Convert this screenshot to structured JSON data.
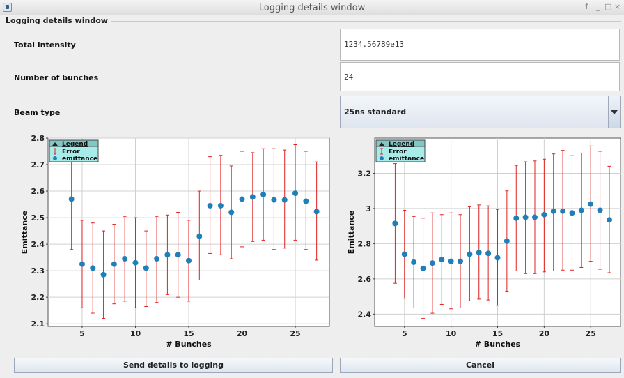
{
  "window": {
    "title": "Logging details window",
    "controls": [
      "↑",
      "_",
      "□",
      "×"
    ]
  },
  "panel": {
    "title": "Logging details window"
  },
  "form": {
    "total_intensity": {
      "label": "Total intensity",
      "value": "1234.56789e13"
    },
    "number_of_bunches": {
      "label": "Number of bunches",
      "value": "24"
    },
    "beam_type": {
      "label": "Beam type",
      "value": "25ns standard"
    }
  },
  "buttons": {
    "send": "Send details to logging",
    "cancel": "Cancel"
  },
  "colors": {
    "marker": "#1f7fb8",
    "error_bar": "#e02020",
    "legend_bg": "#a8ecea"
  },
  "chart_data": [
    {
      "type": "scatter",
      "title": "",
      "xlabel": "# Bunches",
      "ylabel": "Emittance",
      "xlim": [
        1.8,
        28.2
      ],
      "ylim": [
        2.09,
        2.8
      ],
      "xticks": [
        5,
        10,
        15,
        20,
        25
      ],
      "yticks": [
        2.1,
        2.2,
        2.3,
        2.4,
        2.5,
        2.6,
        2.7,
        2.8
      ],
      "ytick_labels": [
        "2.1",
        "2.2",
        "2.3",
        "2.4",
        "2.5",
        "2.6",
        "2.7",
        "2.8"
      ],
      "grid": true,
      "legend": {
        "placement": "top-left",
        "title": "Legend",
        "entries": [
          "Error",
          "emittance"
        ]
      },
      "x": [
        4,
        5,
        6,
        7,
        8,
        9,
        10,
        11,
        12,
        13,
        14,
        15,
        16,
        17,
        18,
        19,
        20,
        21,
        22,
        23,
        24,
        25,
        26,
        27
      ],
      "y": [
        2.57,
        2.325,
        2.31,
        2.285,
        2.325,
        2.345,
        2.33,
        2.31,
        2.345,
        2.36,
        2.36,
        2.338,
        2.43,
        2.545,
        2.545,
        2.52,
        2.57,
        2.578,
        2.587,
        2.567,
        2.567,
        2.592,
        2.562,
        2.523
      ],
      "err_low": [
        2.38,
        2.16,
        2.14,
        2.12,
        2.175,
        2.185,
        2.16,
        2.165,
        2.18,
        2.21,
        2.2,
        2.185,
        2.265,
        2.365,
        2.36,
        2.345,
        2.39,
        2.41,
        2.415,
        2.38,
        2.385,
        2.415,
        2.38,
        2.34
      ],
      "err_high": [
        2.76,
        2.49,
        2.48,
        2.45,
        2.475,
        2.505,
        2.5,
        2.45,
        2.505,
        2.51,
        2.52,
        2.49,
        2.6,
        2.73,
        2.735,
        2.695,
        2.75,
        2.745,
        2.76,
        2.76,
        2.755,
        2.775,
        2.75,
        2.71
      ]
    },
    {
      "type": "scatter",
      "title": "",
      "xlabel": "# Bunches",
      "ylabel": "Emittance",
      "xlim": [
        1.8,
        28.2
      ],
      "ylim": [
        2.33,
        3.4
      ],
      "xticks": [
        5,
        10,
        15,
        20,
        25
      ],
      "yticks": [
        2.4,
        2.6,
        2.8,
        3.0,
        3.2
      ],
      "ytick_labels": [
        "2.4",
        "2.6",
        "2.8",
        "3",
        "3.2"
      ],
      "grid": true,
      "legend": {
        "placement": "top-left",
        "title": "Legend",
        "entries": [
          "Error",
          "emittance"
        ]
      },
      "x": [
        4,
        5,
        6,
        7,
        8,
        9,
        10,
        11,
        12,
        13,
        14,
        15,
        16,
        17,
        18,
        19,
        20,
        21,
        22,
        23,
        24,
        25,
        26,
        27
      ],
      "y": [
        2.915,
        2.74,
        2.695,
        2.66,
        2.69,
        2.71,
        2.7,
        2.7,
        2.74,
        2.75,
        2.745,
        2.72,
        2.815,
        2.945,
        2.95,
        2.95,
        2.965,
        2.985,
        2.985,
        2.975,
        2.99,
        3.025,
        2.99,
        2.935
      ],
      "err_low": [
        2.575,
        2.49,
        2.435,
        2.375,
        2.405,
        2.455,
        2.43,
        2.435,
        2.475,
        2.485,
        2.48,
        2.45,
        2.53,
        2.645,
        2.63,
        2.63,
        2.64,
        2.645,
        2.65,
        2.65,
        2.665,
        2.7,
        2.655,
        2.635
      ],
      "err_high": [
        3.255,
        2.99,
        2.955,
        2.945,
        2.975,
        2.965,
        2.975,
        2.965,
        3.01,
        3.02,
        3.015,
        2.995,
        3.1,
        3.245,
        3.265,
        3.27,
        3.28,
        3.31,
        3.33,
        3.3,
        3.315,
        3.355,
        3.325,
        3.24
      ]
    }
  ]
}
